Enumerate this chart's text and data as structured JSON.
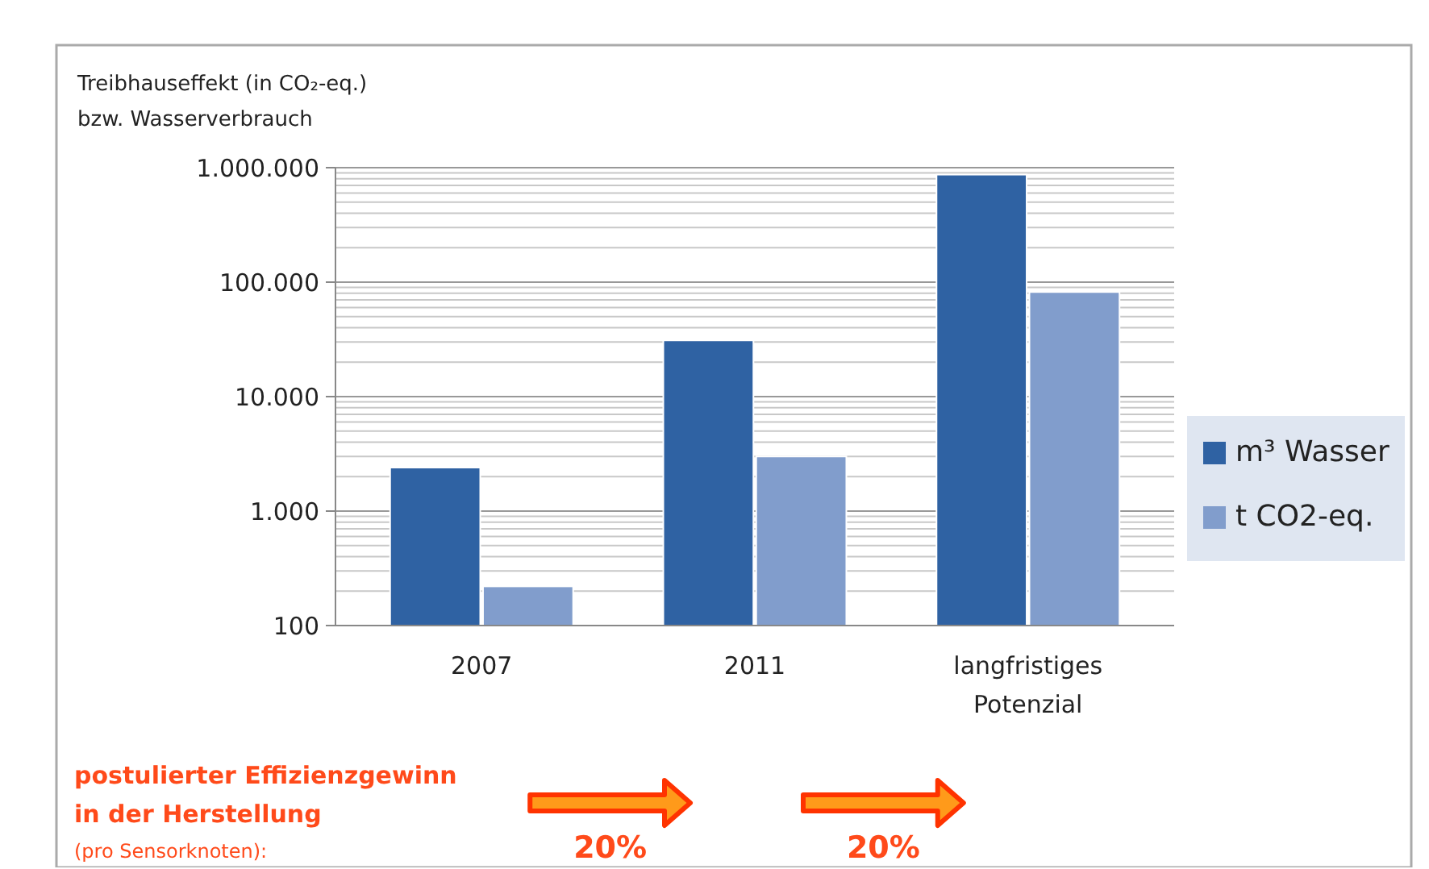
{
  "chart_data": {
    "type": "bar",
    "ylabel": "Treibhauseffekt (in CO₂-eq.)\nbzw. Wasserverbrauch",
    "categories": [
      "2007",
      "2011",
      "langfristiges\nPotenzial"
    ],
    "series": [
      {
        "name": "m³ Wasser",
        "color": "#2f62a3",
        "values": [
          2400,
          31000,
          870000
        ]
      },
      {
        "name": "t CO2-eq.",
        "color": "#819dcc",
        "values": [
          220,
          3000,
          82000
        ]
      }
    ],
    "log": true,
    "ylim": [
      100,
      1000000
    ],
    "yticks": [
      100,
      {
        "value": 1000,
        "label": "1.000"
      },
      {
        "value": 10000,
        "label": "10.000"
      },
      {
        "value": 100000,
        "label": "100.000"
      },
      {
        "value": 1000000,
        "label": "1.000.000"
      }
    ],
    "grid": "y",
    "legend": "right",
    "annotations": [
      "postulierter Effizienzgewinn\nin der Herstellung",
      "(pro Sensorknoten):",
      "20%",
      "20%"
    ]
  }
}
